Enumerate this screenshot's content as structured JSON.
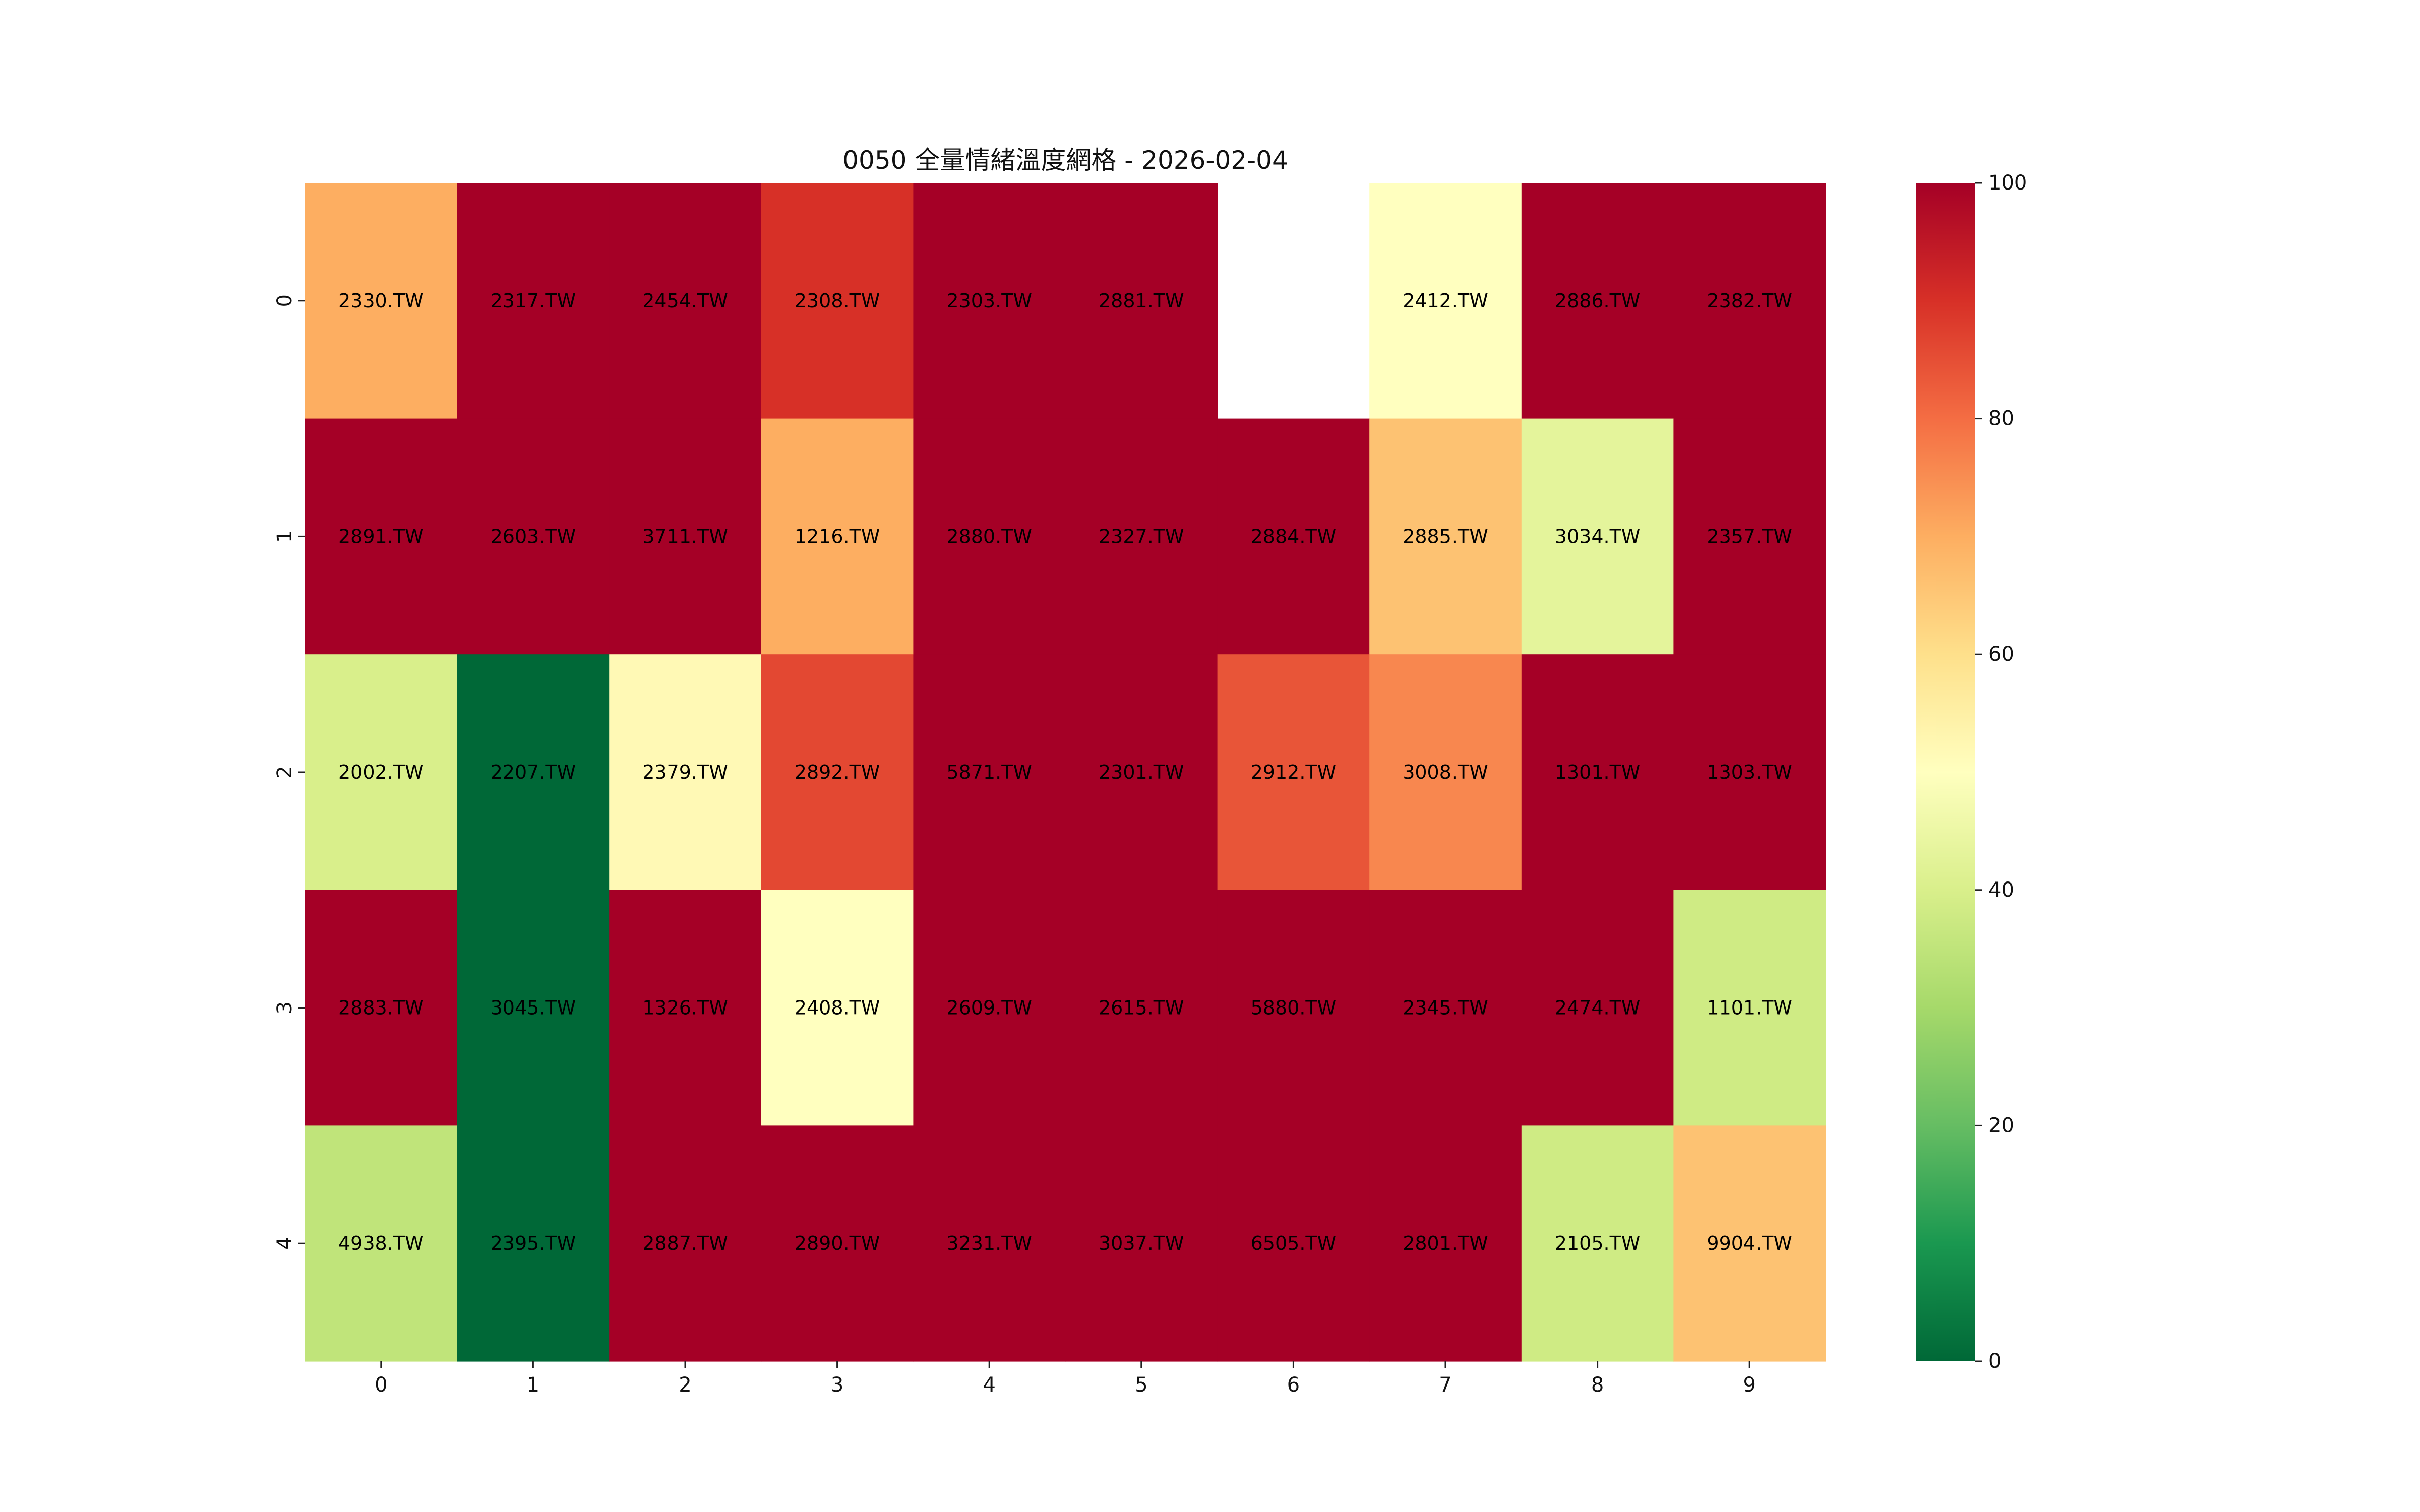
{
  "chart_data": {
    "type": "heatmap",
    "title": "0050 全量情緒溫度網格 - 2026-02-04",
    "xlabel": "",
    "ylabel": "",
    "x_ticks": [
      "0",
      "1",
      "2",
      "3",
      "4",
      "5",
      "6",
      "7",
      "8",
      "9"
    ],
    "y_ticks": [
      "0",
      "1",
      "2",
      "3",
      "4"
    ],
    "colormap": "RdYlGn_r",
    "vmin": 0,
    "vmax": 100,
    "colorbar_ticks": [
      "0",
      "20",
      "40",
      "60",
      "80",
      "100"
    ],
    "values": [
      [
        70,
        100,
        100,
        90,
        100,
        100,
        null,
        50,
        100,
        100
      ],
      [
        100,
        100,
        100,
        70,
        100,
        100,
        100,
        66,
        43,
        100
      ],
      [
        40,
        0,
        52,
        86,
        100,
        100,
        84,
        76,
        100,
        100
      ],
      [
        100,
        0,
        100,
        50,
        100,
        100,
        100,
        100,
        100,
        38
      ],
      [
        35,
        0,
        100,
        100,
        100,
        100,
        100,
        100,
        38,
        66
      ]
    ],
    "labels": [
      [
        "2330.TW",
        "2317.TW",
        "2454.TW",
        "2308.TW",
        "2303.TW",
        "2881.TW",
        "",
        "2412.TW",
        "2886.TW",
        "2382.TW"
      ],
      [
        "2891.TW",
        "2603.TW",
        "3711.TW",
        "1216.TW",
        "2880.TW",
        "2327.TW",
        "2884.TW",
        "2885.TW",
        "3034.TW",
        "2357.TW"
      ],
      [
        "2002.TW",
        "2207.TW",
        "2379.TW",
        "2892.TW",
        "5871.TW",
        "2301.TW",
        "2912.TW",
        "3008.TW",
        "1301.TW",
        "1303.TW"
      ],
      [
        "2883.TW",
        "3045.TW",
        "1326.TW",
        "2408.TW",
        "2609.TW",
        "2615.TW",
        "5880.TW",
        "2345.TW",
        "2474.TW",
        "1101.TW"
      ],
      [
        "4938.TW",
        "2395.TW",
        "2887.TW",
        "2890.TW",
        "3231.TW",
        "3037.TW",
        "6505.TW",
        "2801.TW",
        "2105.TW",
        "9904.TW"
      ]
    ]
  }
}
